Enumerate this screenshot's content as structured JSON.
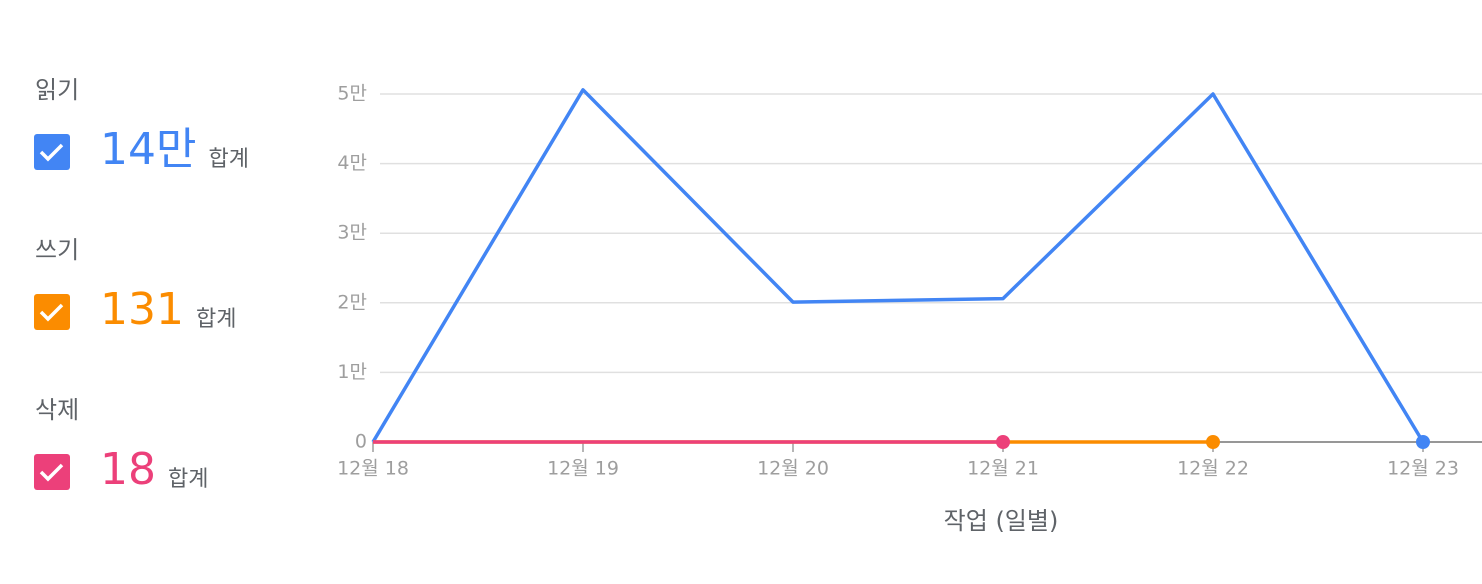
{
  "chart_data": {
    "type": "line",
    "x_label": "작업 (일별)",
    "categories": [
      "12월 18",
      "12월 19",
      "12월 20",
      "12월 21",
      "12월 22",
      "12월 23"
    ],
    "ylim": [
      0,
      51000
    ],
    "yticks": [
      0,
      {
        "value": 10000,
        "label": "1만"
      },
      {
        "value": 20000,
        "label": "2만"
      },
      {
        "value": 30000,
        "label": "3만"
      },
      {
        "value": 40000,
        "label": "4만"
      },
      {
        "value": 50000,
        "label": "5만"
      }
    ],
    "grid": true,
    "series": [
      {
        "name": "읽기",
        "color": "#4285f4",
        "total_label": "14만",
        "total_caption": "합계",
        "values": [
          0,
          50600,
          20100,
          20600,
          50000,
          0
        ]
      },
      {
        "name": "쓰기",
        "color": "#fb8c00",
        "total_label": "131",
        "total_caption": "합계",
        "values": [
          0,
          0,
          0,
          0,
          0,
          null
        ]
      },
      {
        "name": "삭제",
        "color": "#ec407a",
        "total_label": "18",
        "total_caption": "합계",
        "values": [
          0,
          0,
          0,
          0,
          null,
          null
        ]
      }
    ]
  }
}
